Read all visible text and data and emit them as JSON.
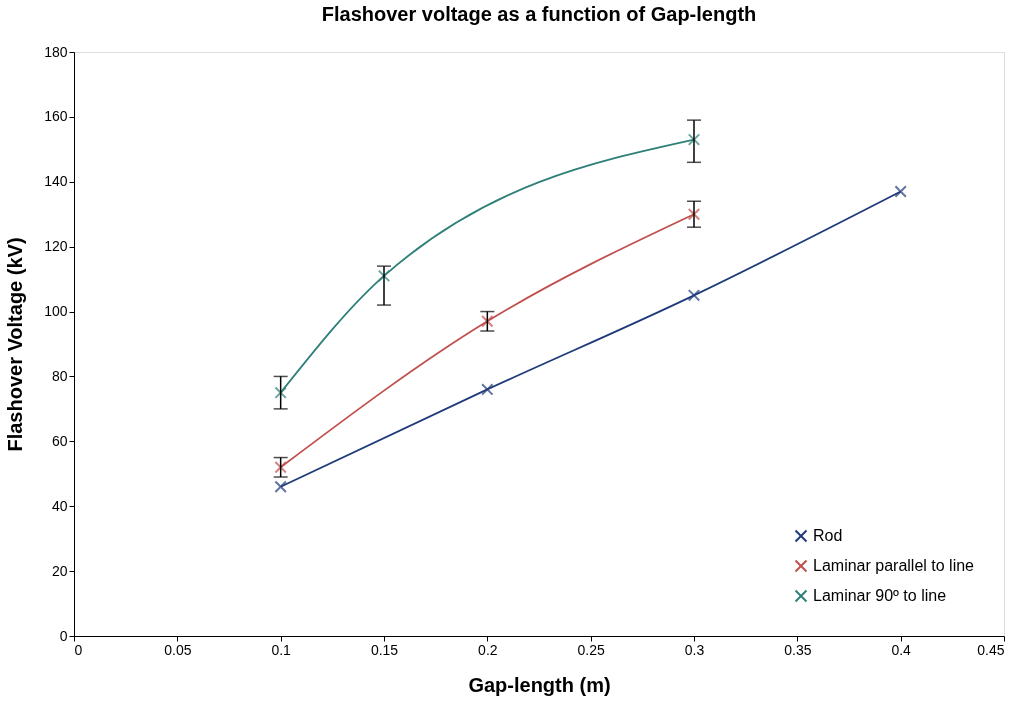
{
  "chart_data": {
    "type": "line",
    "title": "Flashover voltage as a function of Gap-length",
    "xlabel": "Gap-length (m)",
    "ylabel": "Flashover Voltage (kV)",
    "xlim": [
      0,
      0.45
    ],
    "xticks": [
      0,
      0.05,
      0.1,
      0.15,
      0.2,
      0.25,
      0.3,
      0.35,
      0.4,
      0.45
    ],
    "ylim": [
      0,
      180
    ],
    "yticks": [
      0,
      20,
      40,
      60,
      80,
      100,
      120,
      140,
      160,
      180
    ],
    "grid": false,
    "legend": "bottom right",
    "marker": "cross",
    "line_style": "solid",
    "series": [
      {
        "name": "Rod",
        "color": "#1f3a7a",
        "x": [
          0.1,
          0.2,
          0.3,
          0.4
        ],
        "values": [
          46,
          76,
          105,
          137
        ]
      },
      {
        "name": "Laminar parallel to line",
        "color": "#c0504d",
        "x": [
          0.1,
          0.2,
          0.3
        ],
        "values": [
          52,
          97,
          130
        ],
        "errors": [
          3,
          3,
          4
        ]
      },
      {
        "name": "Laminar 90º to line",
        "color": "#2e7f78",
        "x": [
          0.1,
          0.15,
          0.3
        ],
        "values": [
          75,
          111,
          153
        ],
        "errors": [
          5,
          [
            102,
            114
          ],
          [
            146,
            159
          ]
        ]
      }
    ]
  }
}
